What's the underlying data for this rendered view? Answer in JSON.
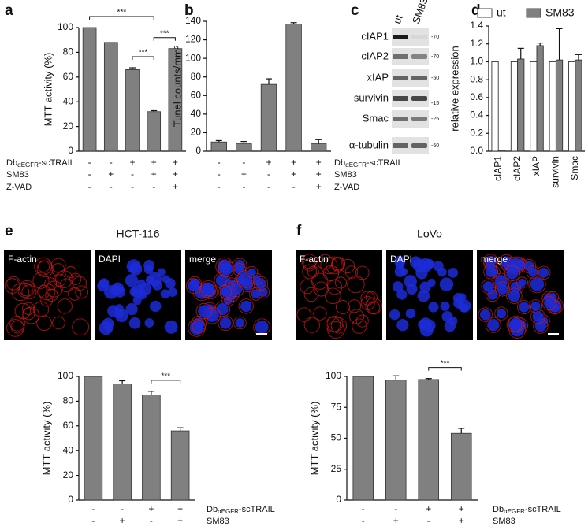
{
  "chart_data": [
    {
      "type": "bar",
      "panel": "a",
      "y_label": "MTT activity (%)",
      "values": [
        100,
        88,
        66,
        32,
        83
      ],
      "errors": [
        0,
        0,
        1.5,
        0.8,
        0
      ],
      "color": "#808080",
      "ylim": [
        0,
        100
      ],
      "yticks": [
        0,
        20,
        40,
        60,
        80,
        100
      ],
      "conditions": [
        {
          "label": [
            "Db",
            "αEGFR",
            "-scTRAIL"
          ],
          "signs": [
            "-",
            "-",
            "+",
            "+",
            "+"
          ]
        },
        {
          "label": [
            "SM83"
          ],
          "signs": [
            "-",
            "+",
            "-",
            "+",
            "+"
          ]
        },
        {
          "label": [
            "Z-VAD"
          ],
          "signs": [
            "-",
            "-",
            "-",
            "-",
            "+"
          ]
        }
      ],
      "brackets": [
        {
          "bars": [
            0,
            3
          ],
          "label": "***"
        },
        {
          "bars": [
            2,
            3
          ],
          "label": "***"
        },
        {
          "bars": [
            3,
            4
          ],
          "label": "***"
        }
      ]
    },
    {
      "type": "bar",
      "panel": "b",
      "y_label": "Tunel counts/mm²",
      "values": [
        10,
        8,
        72,
        137,
        8
      ],
      "errors": [
        1.5,
        2.5,
        6,
        1.5,
        4.5
      ],
      "color": "#808080",
      "ylim": [
        0,
        140
      ],
      "yticks": [
        0,
        20,
        40,
        60,
        80,
        100,
        120,
        140
      ],
      "conditions": [
        {
          "label": [
            "Db",
            "αEGFR",
            "-scTRAIL"
          ],
          "signs": [
            "-",
            "-",
            "+",
            "+",
            "+"
          ]
        },
        {
          "label": [
            "SM83"
          ],
          "signs": [
            "-",
            "+",
            "-",
            "+",
            "+"
          ]
        },
        {
          "label": [
            "Z-VAD"
          ],
          "signs": [
            "-",
            "-",
            "-",
            "-",
            "+"
          ]
        }
      ]
    },
    {
      "type": "grouped-bar",
      "panel": "d",
      "y_label": "relative expression",
      "categories": [
        "cIAP1",
        "cIAP2",
        "xIAP",
        "survivin",
        "Smac"
      ],
      "series": [
        {
          "name": "ut",
          "color": "#ffffff",
          "values": [
            1,
            1,
            1,
            1,
            1
          ],
          "errors": [
            0,
            0,
            0,
            0,
            0
          ]
        },
        {
          "name": "SM83",
          "color": "#808080",
          "values": [
            0.01,
            1.03,
            1.18,
            1.02,
            1.02
          ],
          "errors": [
            0,
            0.12,
            0.03,
            0.35,
            0.06
          ]
        }
      ],
      "ylim": [
        0,
        1.4
      ],
      "yticks": [
        {
          "value": 0,
          "label": "0.0"
        },
        0.2,
        0.4,
        0.6,
        0.8,
        {
          "value": 1,
          "label": "1.0"
        },
        1.2,
        1.4
      ]
    },
    {
      "type": "bar",
      "y_label": "MTT activity (%)",
      "values": [
        100,
        94,
        85,
        56
      ],
      "errors": [
        0,
        2.5,
        3,
        2.5
      ],
      "color": "#808080",
      "ylim": [
        0,
        100
      ],
      "yticks": [
        0,
        20,
        40,
        60,
        80,
        100
      ],
      "conditions": [
        {
          "label": [
            "Db",
            "αEGFR",
            "-scTRAIL"
          ],
          "signs": [
            "-",
            "-",
            "+",
            "+"
          ]
        },
        {
          "label": [
            "SM83"
          ],
          "signs": [
            "-",
            "+",
            "-",
            "+"
          ]
        }
      ],
      "brackets": [
        {
          "bars": [
            2,
            3
          ],
          "label": "***"
        }
      ]
    },
    {
      "type": "bar",
      "y_label": "MTT activity (%)",
      "values": [
        100,
        97,
        97.5,
        54
      ],
      "errors": [
        0,
        3.5,
        0.8,
        4
      ],
      "color": "#808080",
      "ylim": [
        0,
        100
      ],
      "yticks": [
        0,
        25,
        50,
        75,
        100
      ],
      "conditions": [
        {
          "label": [
            "Db",
            "αEGFR",
            "-scTRAIL"
          ],
          "signs": [
            "-",
            "-",
            "+",
            "+"
          ]
        },
        {
          "label": [
            "SM83"
          ],
          "signs": [
            "-",
            "+",
            "-",
            "+"
          ]
        }
      ],
      "brackets": [
        {
          "bars": [
            2,
            3
          ],
          "label": "***"
        }
      ]
    }
  ],
  "blot": {
    "panel": "c",
    "lanes": [
      "ut",
      "SM83"
    ],
    "rows": [
      {
        "protein": "cIAP1",
        "marker": "-70"
      },
      {
        "protein": "cIAP2",
        "marker": "-70"
      },
      {
        "protein": "xIAP",
        "marker": "-50"
      },
      {
        "protein": "survivin",
        "marker": "-15"
      },
      {
        "protein": "Smac",
        "marker": "-25"
      },
      {
        "protein": "α-tubulin",
        "marker": "-50"
      }
    ]
  },
  "images": [
    {
      "panel": "e",
      "title": "HCT-116",
      "channels": [
        "F-actin",
        "DAPI",
        "merge"
      ]
    },
    {
      "panel": "f",
      "title": "LoVo",
      "channels": [
        "F-actin",
        "DAPI",
        "merge"
      ]
    }
  ]
}
